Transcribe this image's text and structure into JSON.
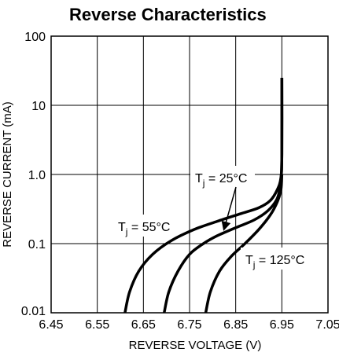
{
  "chart_data": {
    "type": "line",
    "title": "Reverse Characteristics",
    "xlabel": "REVERSE VOLTAGE (V)",
    "ylabel": "REVERSE CURRENT (mA)",
    "x_scale": "linear",
    "y_scale": "log",
    "xlim": [
      6.45,
      7.05
    ],
    "ylim": [
      0.01,
      100
    ],
    "x_ticks": [
      "6.45",
      "6.55",
      "6.65",
      "6.75",
      "6.85",
      "6.95",
      "7.05"
    ],
    "y_ticks": [
      "100",
      "10",
      "1.0",
      "0.1",
      "0.01"
    ],
    "grid": true,
    "series": [
      {
        "name": "Tj = 55°C",
        "x": [
          6.61,
          6.62,
          6.64,
          6.67,
          6.71,
          6.76,
          6.81,
          6.86,
          6.9,
          6.925,
          6.94,
          6.948,
          6.95,
          6.95
        ],
        "y": [
          0.01,
          0.02,
          0.04,
          0.07,
          0.11,
          0.16,
          0.21,
          0.27,
          0.33,
          0.42,
          0.6,
          0.9,
          2,
          25
        ]
      },
      {
        "name": "Tj = 25°C",
        "x": [
          6.695,
          6.705,
          6.725,
          6.75,
          6.78,
          6.81,
          6.85,
          6.89,
          6.92,
          6.94,
          6.948,
          6.95,
          6.95
        ],
        "y": [
          0.01,
          0.02,
          0.04,
          0.07,
          0.1,
          0.13,
          0.17,
          0.22,
          0.3,
          0.45,
          0.8,
          2,
          25
        ]
      },
      {
        "name": "Tj = 125°C",
        "x": [
          6.785,
          6.795,
          6.815,
          6.84,
          6.87,
          6.9,
          6.925,
          6.94,
          6.948,
          6.95
        ],
        "y": [
          0.01,
          0.02,
          0.04,
          0.065,
          0.1,
          0.16,
          0.26,
          0.4,
          0.6,
          1.0
        ]
      }
    ],
    "annotations": [
      {
        "text_main": "T",
        "text_sub": "j",
        "text_rest": " = 55°C"
      },
      {
        "text_main": "T",
        "text_sub": "j",
        "text_rest": " = 25°C"
      },
      {
        "text_main": "T",
        "text_sub": "j",
        "text_rest": " = 125°C"
      }
    ],
    "colors": {
      "line": "#000000",
      "grid": "#000000"
    }
  }
}
